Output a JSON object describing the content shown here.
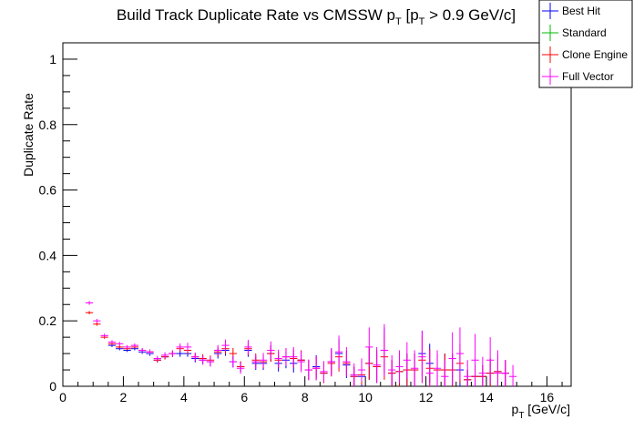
{
  "chart_data": {
    "type": "scatter",
    "title": "Build Track Duplicate Rate vs CMSSW p_T [p_T > 0.9 GeV/c]",
    "title_parts": {
      "pre": "Build Track Duplicate Rate vs CMSSW p",
      "sub": "T",
      "mid": " [p",
      "sub2": "T",
      "post": " > 0.9 GeV/c]"
    },
    "xlabel": "p_T [GeV/c]",
    "xlabel_parts": {
      "pre": "p",
      "sub": "T",
      "post": " [GeV/c]"
    },
    "ylabel": "Duplicate Rate",
    "xlim": [
      0,
      16.8
    ],
    "ylim": [
      0,
      1.05
    ],
    "x_ticks": [
      0,
      2,
      4,
      6,
      8,
      10,
      12,
      14,
      16
    ],
    "x_tick_labels": [
      "0",
      "2",
      "4",
      "6",
      "8",
      "10",
      "12",
      "14",
      "16"
    ],
    "y_ticks": [
      0,
      0.2,
      0.4,
      0.6,
      0.8,
      1
    ],
    "y_tick_labels": [
      "0",
      "0.2",
      "0.4",
      "0.6",
      "0.8",
      "1"
    ],
    "bin_half_width": 0.125,
    "grid": false,
    "legend_position": "top-right",
    "series": [
      {
        "name": "Best Hit",
        "color": "#0000ff",
        "x": [
          1.625,
          1.875,
          2.125,
          2.375,
          2.625,
          2.875,
          3.125,
          3.375,
          3.625,
          3.875,
          4.125,
          4.375,
          4.625,
          4.875,
          5.125,
          5.375,
          5.625,
          5.875,
          6.125,
          6.375,
          6.625,
          6.875,
          7.125,
          7.375,
          7.625,
          7.875,
          8.125,
          8.375,
          8.625,
          8.875,
          9.125,
          9.375,
          9.625,
          9.875,
          10.125,
          10.375,
          10.625,
          10.875,
          11.125,
          11.375,
          11.625,
          11.875,
          12.125,
          12.375,
          12.625,
          12.875,
          13.125,
          13.375,
          13.625,
          13.875,
          14.125,
          14.375,
          14.625
        ],
        "y": [
          0.125,
          0.115,
          0.11,
          0.115,
          0.105,
          0.1,
          0.08,
          0.09,
          0.1,
          0.1,
          0.1,
          0.085,
          0.08,
          0.075,
          0.1,
          0.11,
          0.075,
          0.06,
          0.11,
          0.07,
          0.07,
          0.1,
          0.07,
          0.08,
          0.07,
          0.08,
          0.05,
          0.06,
          0.04,
          0.075,
          0.1,
          0.065,
          0.03,
          0.03,
          0.07,
          0.06,
          0.11,
          0.04,
          0.045,
          0.05,
          0.05,
          0.1,
          0.07,
          0.05,
          0.05,
          0.05,
          0.05,
          0.02,
          0.03,
          0.03,
          0.04,
          0.045,
          0.04
        ],
        "err": [
          0.005,
          0.005,
          0.005,
          0.005,
          0.006,
          0.007,
          0.007,
          0.008,
          0.01,
          0.01,
          0.01,
          0.012,
          0.013,
          0.014,
          0.015,
          0.017,
          0.017,
          0.016,
          0.02,
          0.02,
          0.02,
          0.025,
          0.025,
          0.025,
          0.028,
          0.03,
          0.03,
          0.035,
          0.03,
          0.04,
          0.045,
          0.04,
          0.03,
          0.03,
          0.05,
          0.05,
          0.07,
          0.04,
          0.045,
          0.05,
          0.05,
          0.07,
          0.06,
          0.05,
          0.05,
          0.05,
          0.06,
          0.03,
          0.035,
          0.035,
          0.045,
          0.05,
          0.04
        ]
      },
      {
        "name": "Standard",
        "color": "#00bb00",
        "x": [],
        "y": [],
        "err": []
      },
      {
        "name": "Clone Engine",
        "color": "#ff0000",
        "x": [
          0.875,
          1.125,
          1.375,
          1.625,
          1.875,
          2.125,
          2.375,
          2.625,
          2.875,
          3.125,
          3.375,
          3.625,
          3.875,
          4.125,
          4.375,
          4.625,
          4.875,
          5.125,
          5.375,
          5.625,
          5.875,
          6.125,
          6.375,
          6.625,
          6.875,
          7.125,
          7.375,
          7.625,
          7.875,
          8.125,
          8.375,
          8.625,
          8.875,
          9.125,
          9.375,
          9.625,
          9.875,
          10.125,
          10.375,
          10.625,
          10.875,
          11.125,
          11.375,
          11.625,
          11.875,
          12.125,
          12.375,
          12.625,
          12.875,
          13.125,
          13.375,
          13.625,
          13.875,
          14.125,
          14.375,
          14.625
        ],
        "y": [
          0.225,
          0.19,
          0.15,
          0.13,
          0.12,
          0.115,
          0.12,
          0.11,
          0.105,
          0.08,
          0.09,
          0.1,
          0.115,
          0.11,
          0.09,
          0.085,
          0.08,
          0.105,
          0.115,
          0.1,
          0.06,
          0.115,
          0.08,
          0.075,
          0.1,
          0.08,
          0.09,
          0.085,
          0.08,
          0.05,
          0.055,
          0.04,
          0.07,
          0.09,
          0.07,
          0.03,
          0.035,
          0.07,
          0.06,
          0.09,
          0.04,
          0.045,
          0.05,
          0.05,
          0.08,
          0.055,
          0.05,
          0.05,
          0.05,
          0.07,
          0.02,
          0.03,
          0.03,
          0.04,
          0.045,
          0.04
        ],
        "err": [
          0.005,
          0.005,
          0.005,
          0.005,
          0.005,
          0.005,
          0.005,
          0.006,
          0.007,
          0.007,
          0.008,
          0.01,
          0.01,
          0.012,
          0.012,
          0.013,
          0.014,
          0.015,
          0.017,
          0.017,
          0.016,
          0.02,
          0.02,
          0.02,
          0.025,
          0.025,
          0.025,
          0.028,
          0.03,
          0.03,
          0.035,
          0.03,
          0.04,
          0.045,
          0.04,
          0.03,
          0.03,
          0.05,
          0.05,
          0.07,
          0.04,
          0.045,
          0.05,
          0.05,
          0.07,
          0.06,
          0.05,
          0.05,
          0.05,
          0.06,
          0.03,
          0.035,
          0.035,
          0.045,
          0.05,
          0.04
        ]
      },
      {
        "name": "Full Vector",
        "color": "#ff00ff",
        "x": [
          0.875,
          1.125,
          1.375,
          1.625,
          1.875,
          2.125,
          2.375,
          2.625,
          2.875,
          3.125,
          3.375,
          3.625,
          3.875,
          4.125,
          4.375,
          4.625,
          4.875,
          5.125,
          5.375,
          5.625,
          5.875,
          6.125,
          6.375,
          6.625,
          6.875,
          7.125,
          7.375,
          7.625,
          7.875,
          8.125,
          8.375,
          8.625,
          8.875,
          9.125,
          9.375,
          9.625,
          9.875,
          10.125,
          10.375,
          10.625,
          10.875,
          11.125,
          11.375,
          11.625,
          11.875,
          12.125,
          12.375,
          12.625,
          12.875,
          13.125,
          13.375,
          13.625,
          13.875,
          14.125,
          14.375,
          14.625,
          14.875
        ],
        "y": [
          0.255,
          0.2,
          0.155,
          0.135,
          0.13,
          0.12,
          0.125,
          0.11,
          0.105,
          0.085,
          0.095,
          0.1,
          0.12,
          0.12,
          0.09,
          0.08,
          0.075,
          0.11,
          0.125,
          0.075,
          0.055,
          0.12,
          0.075,
          0.08,
          0.11,
          0.085,
          0.09,
          0.09,
          0.075,
          0.05,
          0.055,
          0.045,
          0.075,
          0.105,
          0.075,
          0.035,
          0.05,
          0.12,
          0.065,
          0.11,
          0.05,
          0.06,
          0.08,
          0.055,
          0.09,
          0.04,
          0.055,
          0.03,
          0.085,
          0.1,
          0.03,
          0.08,
          0.04,
          0.08,
          0.04,
          0.04,
          0.03
        ],
        "err": [
          0.006,
          0.006,
          0.006,
          0.006,
          0.006,
          0.006,
          0.006,
          0.007,
          0.008,
          0.008,
          0.009,
          0.01,
          0.011,
          0.013,
          0.013,
          0.014,
          0.015,
          0.016,
          0.018,
          0.018,
          0.017,
          0.022,
          0.022,
          0.022,
          0.027,
          0.027,
          0.027,
          0.03,
          0.032,
          0.032,
          0.037,
          0.032,
          0.042,
          0.05,
          0.045,
          0.035,
          0.035,
          0.06,
          0.055,
          0.08,
          0.045,
          0.05,
          0.055,
          0.055,
          0.08,
          0.07,
          0.055,
          0.05,
          0.08,
          0.08,
          0.05,
          0.08,
          0.05,
          0.07,
          0.07,
          0.04,
          0.035
        ]
      }
    ]
  }
}
